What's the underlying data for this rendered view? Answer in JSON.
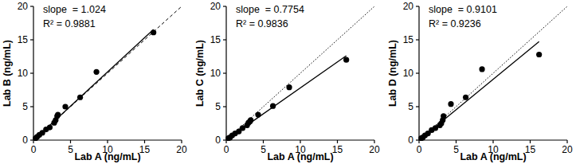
{
  "chart_data": [
    {
      "type": "scatter",
      "x_label": "Lab A (ng/mL)",
      "y_label": "Lab B (ng/mL)",
      "x": [
        0.3,
        0.5,
        0.8,
        1.2,
        1.7,
        2.2,
        2.8,
        3.0,
        3.2,
        3.3,
        4.3,
        6.3,
        8.5,
        16.2
      ],
      "y": [
        0.3,
        0.5,
        0.8,
        1.1,
        1.6,
        1.9,
        2.6,
        3.0,
        3.6,
        3.8,
        5.0,
        6.4,
        10.2,
        16.1
      ],
      "slope_label": "slope  = ",
      "slope": 1.024,
      "intercept": -0.05,
      "r2_label": "R² = ",
      "r_squared": 0.9881,
      "line_style": "dashed",
      "xlim": [
        0,
        20
      ],
      "ylim": [
        0,
        20
      ],
      "xticks": [
        0,
        5,
        10,
        15,
        20
      ],
      "yticks": [
        0,
        5,
        10,
        15,
        20
      ],
      "grid": false
    },
    {
      "type": "scatter",
      "x_label": "Lab A (ng/mL)",
      "y_label": "Lab C (ng/mL)",
      "x": [
        0.3,
        0.5,
        0.8,
        1.2,
        1.7,
        2.2,
        2.8,
        3.0,
        3.2,
        3.3,
        4.3,
        6.3,
        8.5,
        16.2
      ],
      "y": [
        0.3,
        0.4,
        0.7,
        1.0,
        1.3,
        1.8,
        2.2,
        2.6,
        2.8,
        3.0,
        3.8,
        5.1,
        7.9,
        12.0
      ],
      "slope_label": "slope  = ",
      "slope": 0.7754,
      "intercept": 0.05,
      "r2_label": "R² = ",
      "r_squared": 0.9836,
      "line_style": "dotted",
      "xlim": [
        0,
        20
      ],
      "ylim": [
        0,
        20
      ],
      "xticks": [
        0,
        5,
        10,
        15,
        20
      ],
      "yticks": [
        0,
        5,
        10,
        15,
        20
      ],
      "grid": false
    },
    {
      "type": "scatter",
      "x_label": "Lab A (ng/mL)",
      "y_label": "Lab D (ng/mL)",
      "x": [
        0.3,
        0.5,
        0.8,
        1.2,
        1.7,
        2.2,
        2.8,
        3.0,
        3.2,
        3.3,
        4.3,
        6.3,
        8.5,
        16.2
      ],
      "y": [
        0.3,
        0.4,
        0.7,
        1.0,
        1.5,
        1.8,
        2.2,
        2.5,
        3.0,
        3.6,
        5.4,
        6.4,
        10.6,
        12.8
      ],
      "slope_label": "slope  = ",
      "slope": 0.9101,
      "intercept": 0.0,
      "r2_label": "R² = ",
      "r_squared": 0.9236,
      "line_style": "dotted",
      "xlim": [
        0,
        20
      ],
      "ylim": [
        0,
        20
      ],
      "xticks": [
        0,
        5,
        10,
        15,
        20
      ],
      "yticks": [
        0,
        5,
        10,
        15,
        20
      ],
      "grid": false
    }
  ]
}
